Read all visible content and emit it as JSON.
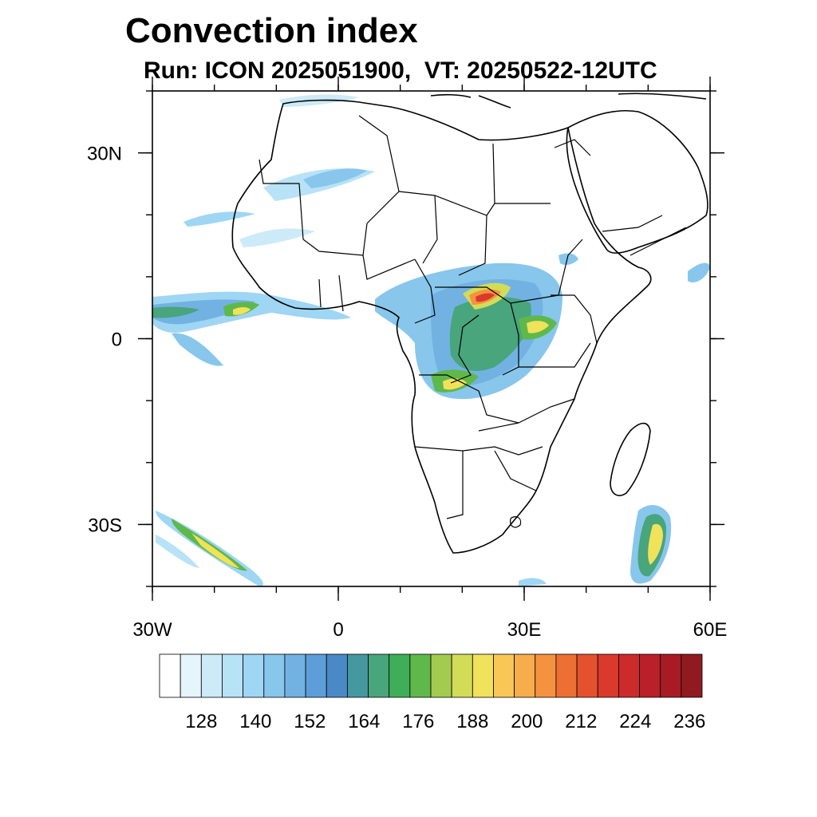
{
  "title": "Convection index",
  "subtitle": "Run: ICON 2025051900,  VT: 20250522-12UTC",
  "map": {
    "lon_range": [
      -30,
      60
    ],
    "lat_range": [
      -40,
      40
    ],
    "lat_ticks": [
      {
        "value": 30,
        "label": "30N"
      },
      {
        "value": 0,
        "label": "0"
      },
      {
        "value": -30,
        "label": "30S"
      }
    ],
    "lon_ticks": [
      {
        "value": -30,
        "label": "30W"
      },
      {
        "value": 0,
        "label": "0"
      },
      {
        "value": 30,
        "label": "30E"
      },
      {
        "value": 60,
        "label": "60E"
      }
    ]
  },
  "colorbar": {
    "colors": [
      "#ffffff",
      "#e6f4fb",
      "#cdeaf8",
      "#b8e2f6",
      "#9fd6f3",
      "#88c6ec",
      "#72b2e3",
      "#5d9ed8",
      "#4a89c8",
      "#4598a0",
      "#48a57c",
      "#3fae58",
      "#5fb84a",
      "#a3cb4f",
      "#d3dc56",
      "#f0e25a",
      "#f8c756",
      "#f7ad4c",
      "#f5923f",
      "#ee6f33",
      "#e4512d",
      "#da3a2b",
      "#cc2a2b",
      "#ba1f2a",
      "#a81b25",
      "#901a20"
    ],
    "labels": [
      "128",
      "140",
      "152",
      "164",
      "176",
      "188",
      "200",
      "212",
      "224",
      "236"
    ]
  }
}
